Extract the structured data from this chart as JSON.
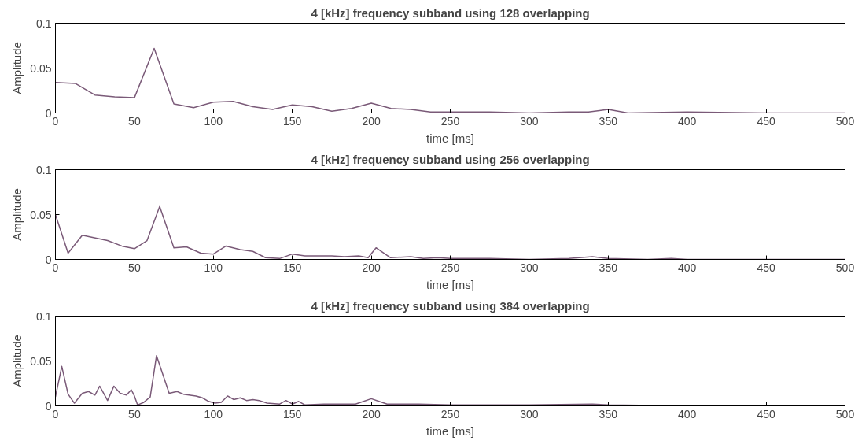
{
  "chart_data": [
    {
      "type": "line",
      "title": "4 [kHz] frequency subband using 128 overlapping",
      "xlabel": "time [ms]",
      "ylabel": "Amplitude",
      "xlim": [
        0,
        500
      ],
      "ylim": [
        0,
        0.1
      ],
      "xticks": [
        0,
        50,
        100,
        150,
        200,
        250,
        300,
        350,
        400,
        450,
        500
      ],
      "yticks": [
        0,
        0.05,
        0.1
      ],
      "series": [
        {
          "color": "#7a5a78",
          "x": [
            0,
            12.5,
            25,
            37.5,
            50,
            62.5,
            75,
            87.5,
            100,
            112.5,
            125,
            137.5,
            150,
            162.5,
            175,
            187.5,
            200,
            212.5,
            225,
            237.5,
            250,
            275,
            300,
            325,
            337.5,
            350,
            362.5,
            400,
            450,
            500
          ],
          "values": [
            0.034,
            0.033,
            0.02,
            0.018,
            0.017,
            0.072,
            0.01,
            0.006,
            0.012,
            0.013,
            0.007,
            0.004,
            0.009,
            0.007,
            0.002,
            0.005,
            0.011,
            0.005,
            0.004,
            0.001,
            0.001,
            0.001,
            0,
            0.001,
            0.001,
            0.004,
            0,
            0.001,
            0,
            0
          ]
        }
      ]
    },
    {
      "type": "line",
      "title": "4 [kHz] frequency subband using 256 overlapping",
      "xlabel": "time [ms]",
      "ylabel": "Amplitude",
      "xlim": [
        0,
        500
      ],
      "ylim": [
        0,
        0.1
      ],
      "xticks": [
        0,
        50,
        100,
        150,
        200,
        250,
        300,
        350,
        400,
        450,
        500
      ],
      "yticks": [
        0,
        0.05,
        0.1
      ],
      "series": [
        {
          "color": "#7a5a78",
          "x": [
            0,
            8,
            17,
            33,
            42,
            50,
            58,
            66,
            75,
            83,
            92,
            100,
            108,
            117,
            125,
            133,
            142,
            150,
            158,
            175,
            183,
            192,
            198,
            203,
            212,
            225,
            233,
            242,
            250,
            275,
            300,
            325,
            340,
            350,
            375,
            390,
            400,
            450,
            500
          ],
          "values": [
            0.05,
            0.007,
            0.027,
            0.021,
            0.015,
            0.012,
            0.021,
            0.059,
            0.013,
            0.014,
            0.007,
            0.006,
            0.015,
            0.011,
            0.009,
            0.002,
            0.001,
            0.006,
            0.004,
            0.004,
            0.003,
            0.004,
            0.002,
            0.013,
            0.002,
            0.003,
            0.001,
            0.002,
            0.001,
            0.001,
            0,
            0.001,
            0.003,
            0.001,
            0,
            0.001,
            0,
            0,
            0
          ]
        }
      ]
    },
    {
      "type": "line",
      "title": "4 [kHz] frequency subband using 384 overlapping",
      "xlabel": "time [ms]",
      "ylabel": "Amplitude",
      "xlim": [
        0,
        500
      ],
      "ylim": [
        0,
        0.1
      ],
      "xticks": [
        0,
        50,
        100,
        150,
        200,
        250,
        300,
        350,
        400,
        450,
        500
      ],
      "yticks": [
        0,
        0.05,
        0.1
      ],
      "series": [
        {
          "color": "#7a5a78",
          "x": [
            0,
            4,
            8,
            12,
            17,
            21,
            25,
            28,
            33,
            37,
            41,
            45,
            48,
            50,
            52,
            56,
            60,
            64,
            72,
            77,
            81,
            89,
            93,
            97,
            101,
            105,
            109,
            113,
            117,
            121,
            125,
            129,
            134,
            142,
            146,
            150,
            154,
            158,
            170,
            180,
            190,
            200,
            210,
            230,
            250,
            300,
            340,
            350,
            400,
            450,
            500
          ],
          "values": [
            0.01,
            0.044,
            0.013,
            0.003,
            0.014,
            0.016,
            0.012,
            0.022,
            0.006,
            0.022,
            0.014,
            0.012,
            0.018,
            0.011,
            0.001,
            0.004,
            0.01,
            0.056,
            0.014,
            0.016,
            0.013,
            0.011,
            0.009,
            0.005,
            0.003,
            0.004,
            0.011,
            0.007,
            0.009,
            0.006,
            0.007,
            0.006,
            0.003,
            0.002,
            0.006,
            0.002,
            0.005,
            0.001,
            0.002,
            0.002,
            0.002,
            0.008,
            0.002,
            0.002,
            0.001,
            0.001,
            0.002,
            0.001,
            0,
            0,
            0
          ]
        }
      ]
    }
  ]
}
